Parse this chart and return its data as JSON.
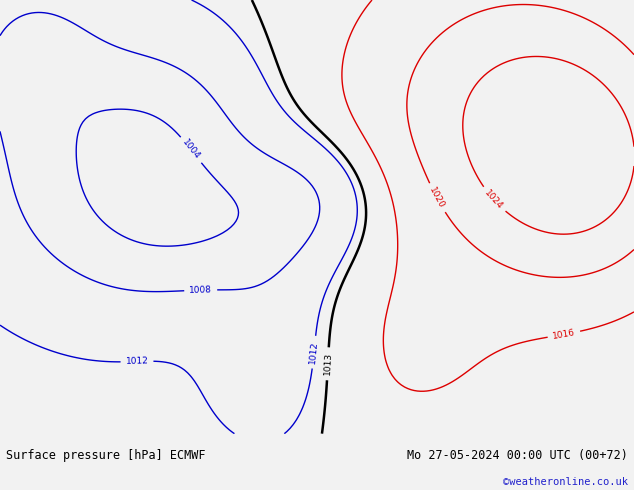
{
  "title_left": "Surface pressure [hPa] ECMWF",
  "title_right": "Mo 27-05-2024 00:00 UTC (00+72)",
  "watermark": "©weatheronline.co.uk",
  "fig_width": 6.34,
  "fig_height": 4.9,
  "dpi": 100,
  "background_color": "#f2f2f2",
  "ocean_color": "#e8e8e8",
  "land_color": "#c8e8b0",
  "bottom_bar_color": "#d8d8d8",
  "title_color": "#000000",
  "watermark_color": "#2222cc",
  "title_fontsize": 8.5,
  "watermark_fontsize": 7.5,
  "lon_min": -120,
  "lon_max": -20,
  "lat_min": -15,
  "lat_max": 45,
  "contour_levels_blue": [
    1004,
    1008,
    1012
  ],
  "contour_levels_black": [
    1013
  ],
  "contour_levels_red": [
    1016,
    1020,
    1024
  ],
  "contour_lw_blue": 1.0,
  "contour_lw_black": 1.8,
  "contour_lw_red": 1.0,
  "label_fontsize": 6.5
}
